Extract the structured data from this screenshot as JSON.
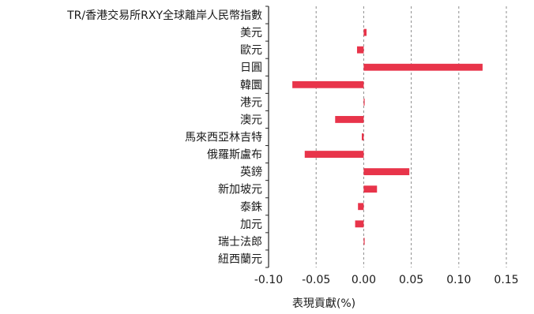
{
  "chart_data": {
    "type": "bar",
    "orientation": "horizontal",
    "categories": [
      "TR/香港交易所RXY全球離岸人民幣指數",
      "美元",
      "歐元",
      "日圓",
      "韓圜",
      "港元",
      "澳元",
      "馬來西亞林吉特",
      "俄羅斯盧布",
      "英鎊",
      "新加坡元",
      "泰銖",
      "加元",
      "瑞士法郎",
      "紐西蘭元"
    ],
    "values": [
      0,
      0.003,
      -0.007,
      0.125,
      -0.075,
      0.001,
      -0.03,
      -0.002,
      -0.062,
      0.048,
      0.014,
      -0.006,
      -0.009,
      0.001,
      0
    ],
    "xlabel": "表現貢獻(%)",
    "ylabel": "",
    "title": "",
    "xlim": [
      -0.1,
      0.15
    ],
    "xticks": [
      -0.1,
      -0.05,
      0.0,
      0.05,
      0.1,
      0.15
    ],
    "xtick_labels": [
      "-0.10",
      "-0.05",
      "0.00",
      "0.05",
      "0.10",
      "0.15"
    ],
    "grid": "vertical dashed",
    "legend": "none",
    "bar_color": "#e8344a",
    "grid_color": "#8c8c8c",
    "axis_color": "#262626"
  }
}
